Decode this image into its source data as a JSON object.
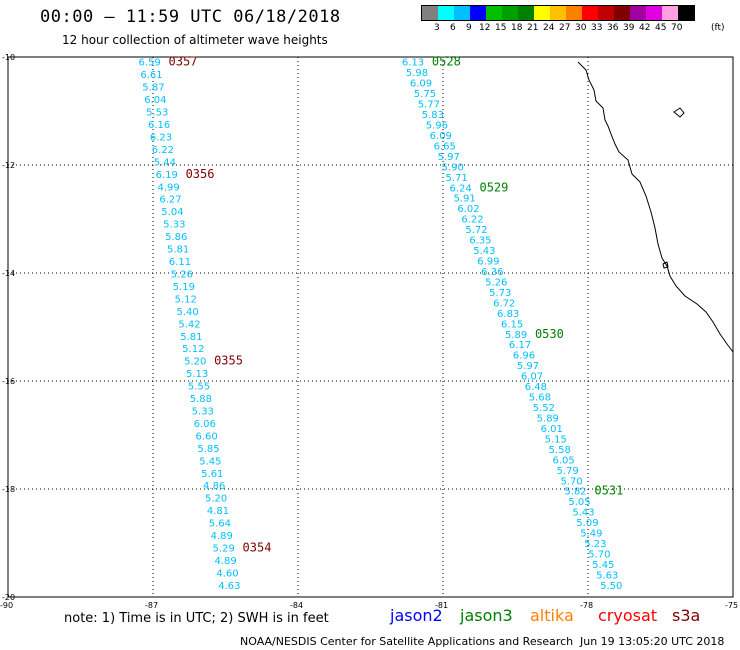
{
  "header": {
    "title": "00:00 – 11:59 UTC 06/18/2018",
    "subtitle": "12 hour collection of altimeter wave heights"
  },
  "legend": {
    "unit": "(ft)",
    "items": [
      {
        "label": "3",
        "color": "#808080"
      },
      {
        "label": "6",
        "color": "#00ffff"
      },
      {
        "label": "9",
        "color": "#00bfff"
      },
      {
        "label": "12",
        "color": "#0000ff"
      },
      {
        "label": "15",
        "color": "#00c000"
      },
      {
        "label": "18",
        "color": "#00a000"
      },
      {
        "label": "21",
        "color": "#008000"
      },
      {
        "label": "24",
        "color": "#ffff00"
      },
      {
        "label": "27",
        "color": "#ffc000"
      },
      {
        "label": "30",
        "color": "#ff8000"
      },
      {
        "label": "33",
        "color": "#ff0000"
      },
      {
        "label": "36",
        "color": "#c00000"
      },
      {
        "label": "39",
        "color": "#800000"
      },
      {
        "label": "42",
        "color": "#a000a0"
      },
      {
        "label": "45",
        "color": "#e000e0"
      },
      {
        "label": "70",
        "color": "#ffa0e0"
      },
      {
        "label": "",
        "color": "#000000"
      }
    ]
  },
  "axes": {
    "lat_labels": [
      "-10",
      "-12",
      "-14",
      "-16",
      "-18",
      "-20"
    ],
    "lon_labels": [
      "-90",
      "-87",
      "-84",
      "-81",
      "-78",
      "-75"
    ]
  },
  "tracks": [
    {
      "name": "west",
      "color": "#00bfff",
      "values": [
        "6.59",
        "6.61",
        "5.87",
        "6.04",
        "5.53",
        "6.16",
        "6.23",
        "6.22",
        "5.44",
        "6.19",
        "4.99",
        "6.27",
        "5.04",
        "5.33",
        "5.86",
        "5.81",
        "6.11",
        "5.26",
        "5.19",
        "5.12",
        "5.40",
        "5.42",
        "5.81",
        "5.12",
        "5.20",
        "5.13",
        "5.55",
        "5.88",
        "5.33",
        "6.06",
        "6.60",
        "5.85",
        "5.45",
        "5.61",
        "4.86",
        "5.20",
        "4.81",
        "5.64",
        "4.89",
        "5.29",
        "4.89",
        "4.60",
        "4.63"
      ],
      "times": [
        {
          "label": "0357",
          "color": "#800000",
          "after": 0
        },
        {
          "label": "0356",
          "color": "#800000",
          "after": 9
        },
        {
          "label": "0355",
          "color": "#800000",
          "after": 24
        },
        {
          "label": "0354",
          "color": "#800000",
          "after": 39
        }
      ]
    },
    {
      "name": "east",
      "color": "#00bfff",
      "values": [
        "6.13",
        "5.98",
        "6.09",
        "5.75",
        "5.77",
        "5.83",
        "5.96",
        "6.09",
        "6.65",
        "5.97",
        "5.90",
        "5.71",
        "6.24",
        "5.91",
        "6.02",
        "6.22",
        "5.72",
        "6.35",
        "5.43",
        "6.99",
        "6.36",
        "5.26",
        "5.73",
        "6.72",
        "6.83",
        "6.15",
        "5.89",
        "6.17",
        "6.96",
        "5.97",
        "6.07",
        "6.48",
        "5.68",
        "5.52",
        "5.89",
        "6.01",
        "5.15",
        "5.58",
        "6.05",
        "5.79",
        "5.70",
        "5.82",
        "5.05",
        "5.43",
        "5.09",
        "5.49",
        "5.23",
        "5.70",
        "5.45",
        "5.63",
        "5.50"
      ],
      "times": [
        {
          "label": "0528",
          "color": "#008000",
          "after": 0
        },
        {
          "label": "0529",
          "color": "#008000",
          "after": 12
        },
        {
          "label": "0530",
          "color": "#008000",
          "after": 26
        },
        {
          "label": "0531",
          "color": "#008000",
          "after": 41
        }
      ]
    }
  ],
  "footer": {
    "note": "note: 1) Time is in UTC; 2) SWH is in feet",
    "satellites": [
      {
        "label": "jason2",
        "color": "#0000ff"
      },
      {
        "label": "jason3",
        "color": "#008000"
      },
      {
        "label": "altika",
        "color": "#ff8000"
      },
      {
        "label": "cryosat",
        "color": "#ff0000"
      },
      {
        "label": "s3a",
        "color": "#800000"
      }
    ],
    "credit": "NOAA/NESDIS Center for Satellite Applications and Research",
    "timestamp": "Jun 19 13:05:20 UTC 2018"
  }
}
